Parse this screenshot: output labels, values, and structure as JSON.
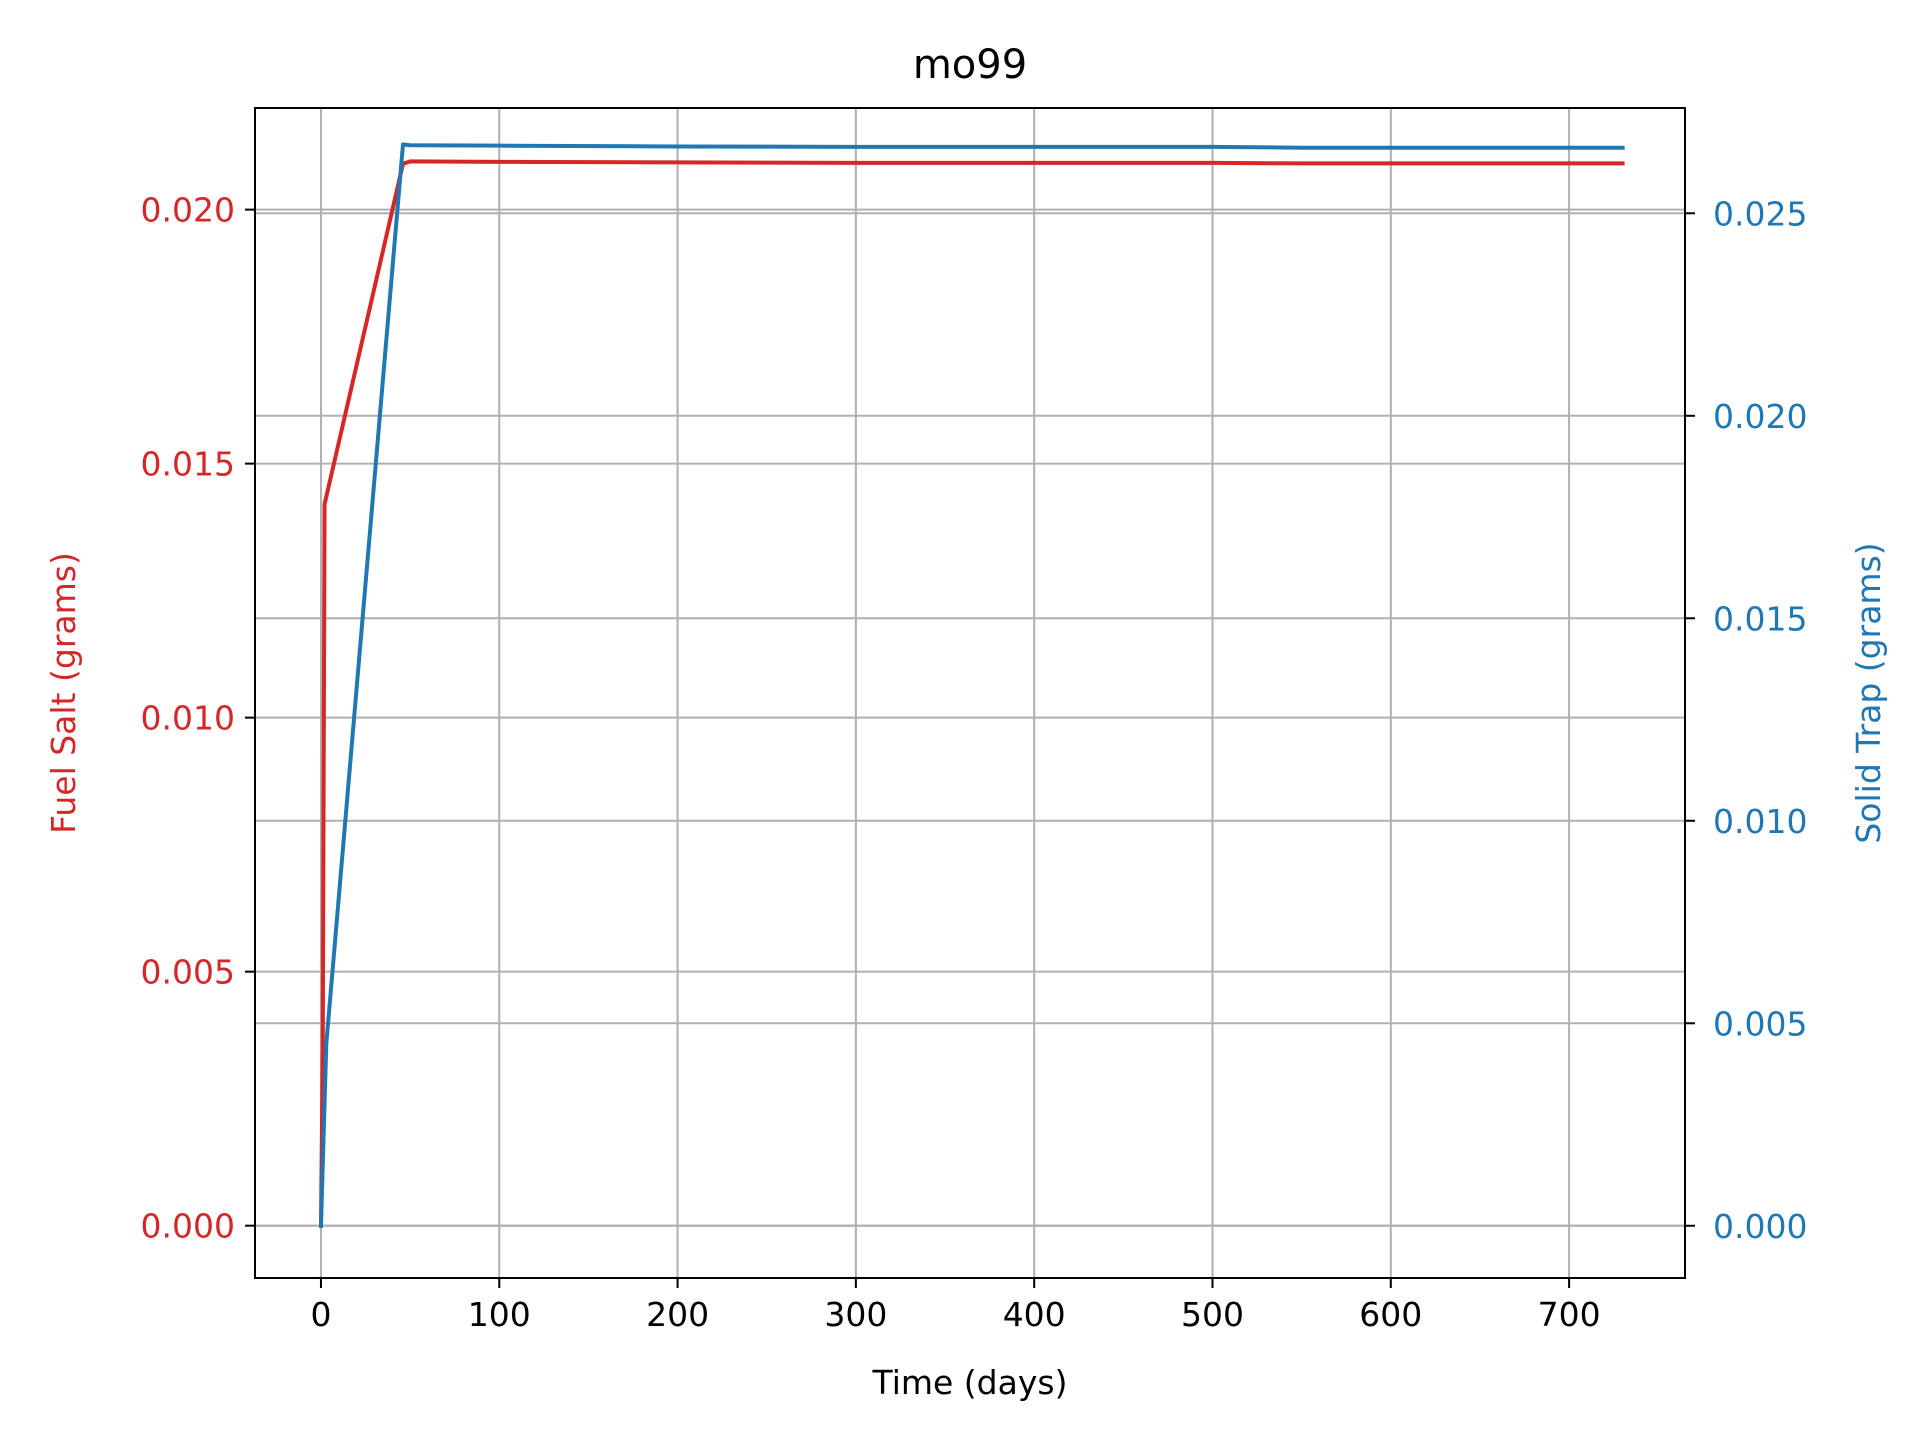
{
  "chart_data": {
    "type": "line",
    "title": "mo99",
    "xlabel": "Time (days)",
    "ylabel_left": "Fuel Salt (grams)",
    "ylabel_right": "Solid Trap (grams)",
    "xlim": [
      -37,
      765
    ],
    "ylim_left": [
      -0.00103,
      0.022
    ],
    "ylim_right": [
      -0.00129,
      0.0276
    ],
    "xticks": [
      0,
      100,
      200,
      300,
      400,
      500,
      600,
      700
    ],
    "xtick_labels": [
      "0",
      "100",
      "200",
      "300",
      "400",
      "500",
      "600",
      "700"
    ],
    "yticks_left": [
      0.0,
      0.005,
      0.01,
      0.015,
      0.02
    ],
    "ytick_labels_left": [
      "0.000",
      "0.005",
      "0.010",
      "0.015",
      "0.020"
    ],
    "yticks_right": [
      0.0,
      0.005,
      0.01,
      0.015,
      0.02,
      0.025
    ],
    "ytick_labels_right": [
      "0.000",
      "0.005",
      "0.010",
      "0.015",
      "0.020",
      "0.025"
    ],
    "grid": true,
    "colors": {
      "left_axis": "#d62728",
      "right_axis": "#1f77b4",
      "grid": "#b0b0b0",
      "axes": "#000000"
    },
    "series": [
      {
        "axis": "left",
        "color": "#d62728",
        "x": [
          0,
          1,
          2,
          46,
          50,
          100,
          200,
          300,
          400,
          500,
          550,
          600,
          700,
          730
        ],
        "y": [
          0.0,
          0.0035,
          0.0142,
          0.0209,
          0.02095,
          0.02094,
          0.02093,
          0.02092,
          0.02092,
          0.02092,
          0.02091,
          0.02091,
          0.02091,
          0.02091
        ]
      },
      {
        "axis": "right",
        "color": "#1f77b4",
        "x": [
          0,
          3,
          46,
          50,
          100,
          200,
          300,
          400,
          500,
          550,
          600,
          700,
          730
        ],
        "y": [
          0.0,
          0.0045,
          0.0267,
          0.02668,
          0.02667,
          0.02665,
          0.02664,
          0.02664,
          0.02664,
          0.02662,
          0.02662,
          0.02662,
          0.02662
        ]
      }
    ]
  }
}
